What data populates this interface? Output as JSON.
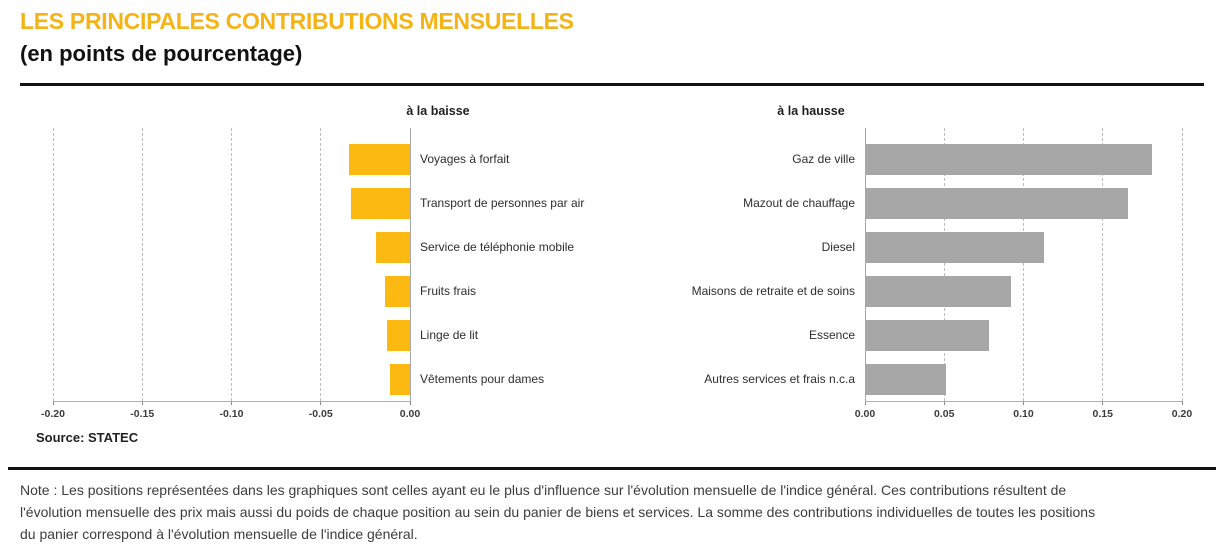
{
  "header": {
    "title": "LES PRINCIPALES CONTRIBUTIONS MENSUELLES",
    "subtitle": "(en points de pourcentage)"
  },
  "source": "Source: STATEC",
  "note": {
    "lines": [
      "Note : Les positions représentées dans les graphiques sont celles ayant eu le plus d'influence sur l'évolution mensuelle de l'indice général. Ces contributions résultent de",
      "l'évolution mensuelle des prix mais aussi du poids de chaque position au sein du panier de biens et services. La somme des contributions individuelles de toutes les positions",
      "du panier correspond à l'évolution mensuelle de l'indice général."
    ]
  },
  "colors": {
    "accent_yellow": "#F5B316",
    "bar_yellow": "#FBB911",
    "bar_gray": "#A7A7A7",
    "gridline": "#BDBDBD",
    "rule_black": "#111111"
  },
  "chart_data": [
    {
      "type": "bar",
      "orientation": "horizontal",
      "title": "à la baisse",
      "categories": [
        "Voyages à forfait",
        "Transport de personnes par air",
        "Service de téléphonie mobile",
        "Fruits frais",
        "Linge de lit",
        "Vêtements pour dames"
      ],
      "values": [
        -0.034,
        -0.033,
        -0.019,
        -0.014,
        -0.013,
        -0.011
      ],
      "xlim": [
        -0.2,
        0.0
      ],
      "ticks": [
        -0.2,
        -0.15,
        -0.1,
        -0.05,
        0.0
      ],
      "tick_labels": [
        "-0.20",
        "-0.15",
        "-0.10",
        "-0.05",
        "0.00"
      ],
      "bar_color": "#FBB911",
      "grid": true,
      "legend": "none"
    },
    {
      "type": "bar",
      "orientation": "horizontal",
      "title": "à la hausse",
      "categories": [
        "Gaz de ville",
        "Mazout de chauffage",
        "Diesel",
        "Maisons de retraite et de soins",
        "Essence",
        "Autres services et frais n.c.a"
      ],
      "values": [
        0.181,
        0.166,
        0.113,
        0.092,
        0.078,
        0.051
      ],
      "xlim": [
        0.0,
        0.2
      ],
      "ticks": [
        0.0,
        0.05,
        0.1,
        0.15,
        0.2
      ],
      "tick_labels": [
        "0.00",
        "0.05",
        "0.10",
        "0.15",
        "0.20"
      ],
      "bar_color": "#A7A7A7",
      "grid": true,
      "legend": "none"
    }
  ]
}
